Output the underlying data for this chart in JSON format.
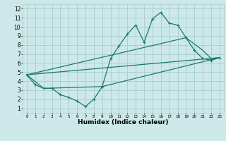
{
  "xlabel": "Humidex (Indice chaleur)",
  "xlim": [
    -0.5,
    23.5
  ],
  "ylim": [
    0.5,
    12.5
  ],
  "xticks": [
    0,
    1,
    2,
    3,
    4,
    5,
    6,
    7,
    8,
    9,
    10,
    11,
    12,
    13,
    14,
    15,
    16,
    17,
    18,
    19,
    20,
    21,
    22,
    23
  ],
  "yticks": [
    1,
    2,
    3,
    4,
    5,
    6,
    7,
    8,
    9,
    10,
    11,
    12
  ],
  "background_color": "#cce8e8",
  "grid_color": "#aacccc",
  "line_color": "#1a7a6e",
  "line1_x": [
    0,
    1,
    2,
    3,
    4,
    5,
    6,
    7,
    8,
    9,
    10,
    11,
    12,
    13,
    14,
    15,
    16,
    17,
    18,
    19,
    20,
    21,
    22,
    23
  ],
  "line1_y": [
    4.7,
    3.6,
    3.2,
    3.2,
    2.5,
    2.2,
    1.8,
    1.2,
    2.0,
    3.4,
    6.5,
    7.9,
    9.2,
    10.2,
    8.3,
    10.9,
    11.6,
    10.4,
    10.2,
    8.8,
    7.4,
    6.5,
    6.3,
    6.6
  ],
  "line2_x": [
    0,
    2,
    9,
    23
  ],
  "line2_y": [
    4.7,
    3.2,
    3.4,
    6.6
  ],
  "line3_x": [
    0,
    19,
    21,
    22,
    23
  ],
  "line3_y": [
    4.7,
    8.8,
    7.4,
    6.5,
    6.6
  ],
  "marker_size": 2.5,
  "line_width": 0.9
}
